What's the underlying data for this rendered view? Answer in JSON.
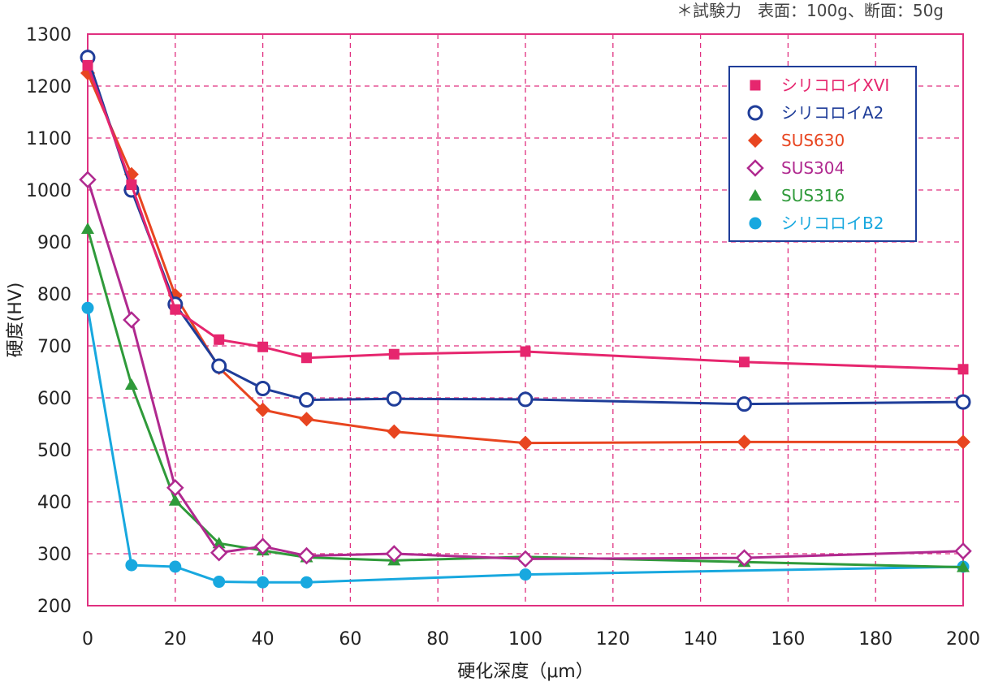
{
  "note": "＊試験力　表面：100g、断面：50g",
  "chart_data": {
    "type": "line",
    "title": "",
    "xlabel": "硬化深度（μm）",
    "ylabel": "硬度(HV)",
    "xlim": [
      0,
      200
    ],
    "ylim": [
      200,
      1300
    ],
    "xticks": [
      0,
      20,
      40,
      60,
      80,
      100,
      120,
      140,
      160,
      180,
      200
    ],
    "yticks": [
      200,
      300,
      400,
      500,
      600,
      700,
      800,
      900,
      1000,
      1100,
      1200,
      1300
    ],
    "grid": true,
    "legend": "top-right",
    "x": [
      0,
      10,
      20,
      30,
      40,
      50,
      70,
      100,
      150,
      200
    ],
    "series": [
      {
        "name": "シリコロイXVI",
        "marker": "square",
        "color": "#e6266e",
        "values": [
          1240,
          1010,
          770,
          712,
          698,
          677,
          684,
          689,
          669,
          655
        ]
      },
      {
        "name": "シリコロイA2",
        "marker": "circle-open",
        "color": "#1f3d99",
        "values": [
          1255,
          1000,
          780,
          661,
          618,
          596,
          598,
          597,
          588,
          592
        ]
      },
      {
        "name": "SUS630",
        "marker": "diamond",
        "color": "#e84520",
        "values": [
          1225,
          1030,
          797,
          658,
          577,
          559,
          535,
          513,
          515,
          515
        ]
      },
      {
        "name": "SUS304",
        "marker": "diamond-open",
        "color": "#b0298f",
        "values": [
          1020,
          750,
          427,
          302,
          314,
          296,
          300,
          290,
          292,
          305
        ]
      },
      {
        "name": "SUS316",
        "marker": "triangle",
        "color": "#2f9a3a",
        "values": [
          925,
          625,
          402,
          320,
          306,
          293,
          287,
          294,
          284,
          274
        ]
      },
      {
        "name": "シリコロイB2",
        "marker": "circle",
        "color": "#18a8df",
        "values": [
          773,
          278,
          275,
          246,
          245,
          245,
          null,
          260,
          null,
          275
        ]
      }
    ]
  }
}
